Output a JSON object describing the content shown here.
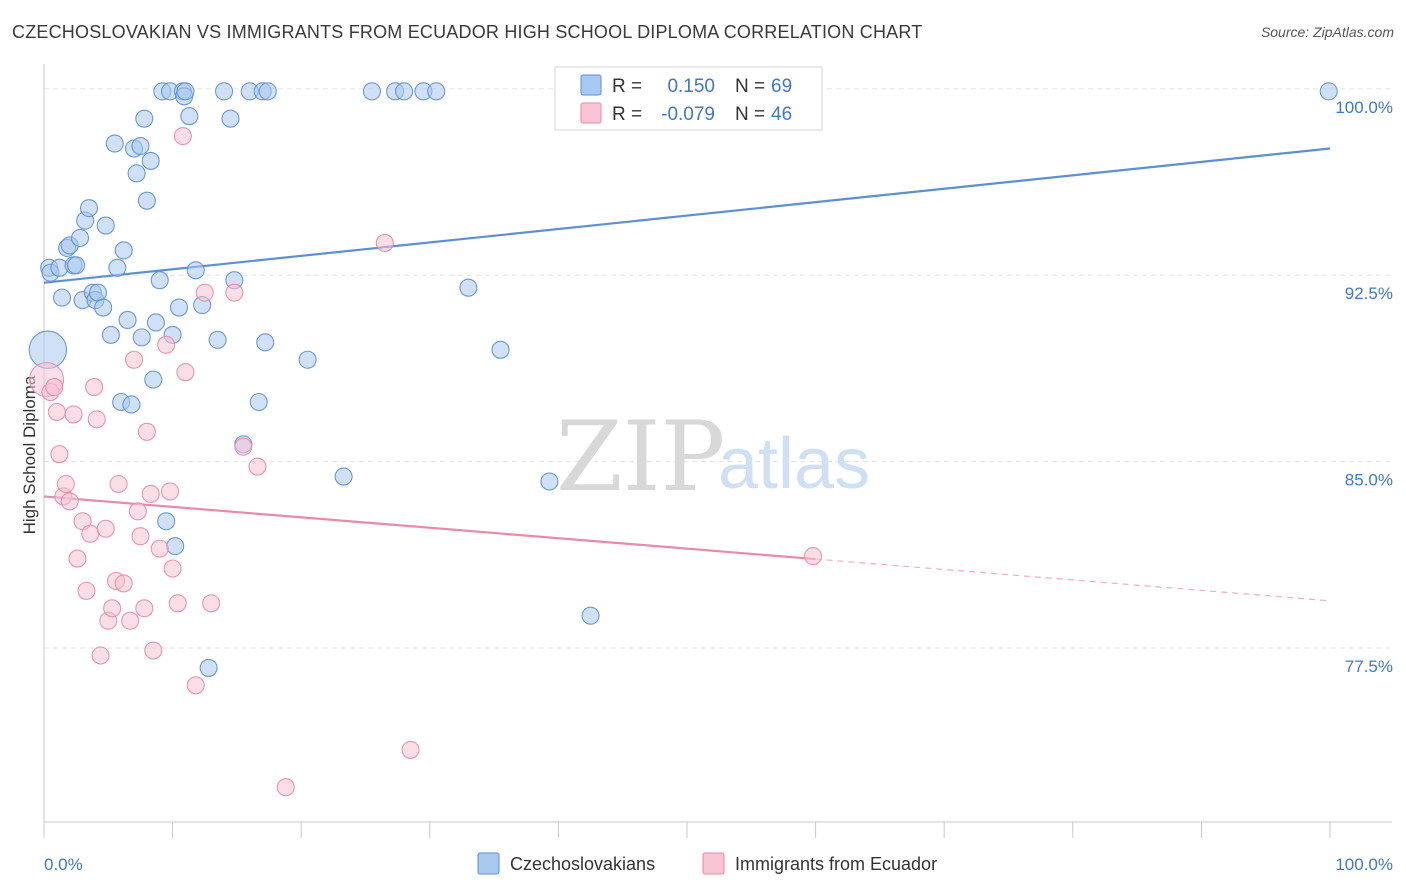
{
  "header": {
    "title": "CZECHOSLOVAKIAN VS IMMIGRANTS FROM ECUADOR HIGH SCHOOL DIPLOMA CORRELATION CHART",
    "source": "Source: ZipAtlas.com"
  },
  "watermark": {
    "zip": "ZIP",
    "atlas": "atlas"
  },
  "legend_box": {
    "rows": [
      {
        "r_label": "R =",
        "r_value": "0.150",
        "n_label": "N =",
        "n_value": "69",
        "color": "#a9c8f0",
        "stroke": "#5b8fd6"
      },
      {
        "r_label": "R =",
        "r_value": "-0.079",
        "n_label": "N =",
        "n_value": "46",
        "color": "#f8c3d2",
        "stroke": "#e88aa8"
      }
    ]
  },
  "bottom_legend": {
    "items": [
      {
        "label": "Czechoslovakians",
        "color": "#a9c8f0",
        "stroke": "#5b8fd6"
      },
      {
        "label": "Immigrants from Ecuador",
        "color": "#f8c3d2",
        "stroke": "#e88aa8"
      }
    ]
  },
  "chart_data": {
    "type": "scatter",
    "title": "CZECHOSLOVAKIAN VS IMMIGRANTS FROM ECUADOR HIGH SCHOOL DIPLOMA CORRELATION CHART",
    "xlabel": "",
    "ylabel": "High School Diploma",
    "xlim": [
      0,
      100
    ],
    "ylim": [
      70.5,
      101.0
    ],
    "x_tick_labels": [
      "0.0%",
      "100.0%"
    ],
    "y_ticks": [
      77.5,
      85.0,
      92.5,
      100.0
    ],
    "y_tick_labels": [
      "77.5%",
      "85.0%",
      "92.5%",
      "100.0%"
    ],
    "grid": true,
    "series": [
      {
        "name": "Czechoslovakians",
        "color": "#5b8fd6",
        "fill": "#a9c8f0",
        "trend": {
          "x0": 0,
          "y0": 92.2,
          "x1": 100,
          "y1": 97.6,
          "dashed_from": null
        },
        "points": [
          [
            0.3,
            89.5,
            2.2
          ],
          [
            0.4,
            92.8,
            1
          ],
          [
            0.5,
            92.6,
            1
          ],
          [
            1.2,
            92.8,
            1
          ],
          [
            1.4,
            91.6,
            1
          ],
          [
            1.8,
            93.6,
            1
          ],
          [
            2.0,
            93.7,
            1
          ],
          [
            2.3,
            92.9,
            1
          ],
          [
            2.5,
            92.9,
            1
          ],
          [
            2.8,
            94.0,
            1
          ],
          [
            3.0,
            91.5,
            1
          ],
          [
            3.2,
            94.7,
            1
          ],
          [
            3.5,
            95.2,
            1
          ],
          [
            3.8,
            91.8,
            1
          ],
          [
            4.0,
            91.5,
            1
          ],
          [
            4.2,
            91.8,
            1
          ],
          [
            4.6,
            91.2,
            1
          ],
          [
            4.8,
            94.5,
            1
          ],
          [
            5.2,
            90.1,
            1
          ],
          [
            5.5,
            97.8,
            1
          ],
          [
            5.7,
            92.8,
            1
          ],
          [
            6.0,
            87.4,
            1
          ],
          [
            6.2,
            93.5,
            1
          ],
          [
            6.5,
            90.7,
            1
          ],
          [
            6.8,
            87.3,
            1
          ],
          [
            7.0,
            97.6,
            1
          ],
          [
            7.2,
            96.6,
            1
          ],
          [
            7.5,
            97.7,
            1
          ],
          [
            7.6,
            90.0,
            1
          ],
          [
            7.8,
            98.8,
            1
          ],
          [
            8.0,
            95.5,
            1
          ],
          [
            8.3,
            97.1,
            1
          ],
          [
            8.5,
            88.3,
            1
          ],
          [
            8.7,
            90.6,
            1
          ],
          [
            9.0,
            92.3,
            1
          ],
          [
            9.2,
            99.9,
            1
          ],
          [
            9.5,
            82.6,
            1
          ],
          [
            9.8,
            99.9,
            1
          ],
          [
            10.0,
            90.1,
            1
          ],
          [
            10.2,
            81.6,
            1
          ],
          [
            10.5,
            91.2,
            1
          ],
          [
            10.8,
            99.9,
            1
          ],
          [
            10.9,
            99.7,
            1
          ],
          [
            11.0,
            99.9,
            1
          ],
          [
            11.3,
            98.9,
            1
          ],
          [
            11.8,
            92.7,
            1
          ],
          [
            12.3,
            91.3,
            1
          ],
          [
            12.8,
            76.7,
            1
          ],
          [
            13.5,
            89.9,
            1
          ],
          [
            14.0,
            99.9,
            1
          ],
          [
            14.5,
            98.8,
            1
          ],
          [
            14.8,
            92.3,
            1
          ],
          [
            15.5,
            85.7,
            1
          ],
          [
            16.0,
            99.9,
            1
          ],
          [
            16.7,
            87.4,
            1
          ],
          [
            17.0,
            99.9,
            1
          ],
          [
            17.2,
            89.8,
            1
          ],
          [
            17.4,
            99.9,
            1
          ],
          [
            20.5,
            89.1,
            1
          ],
          [
            23.3,
            84.4,
            1
          ],
          [
            25.5,
            99.9,
            1
          ],
          [
            27.3,
            99.9,
            1
          ],
          [
            28.0,
            99.9,
            1
          ],
          [
            29.5,
            99.9,
            1
          ],
          [
            30.5,
            99.9,
            1
          ],
          [
            33.0,
            92.0,
            1
          ],
          [
            35.5,
            89.5,
            1
          ],
          [
            39.3,
            84.2,
            1
          ],
          [
            42.5,
            78.8,
            1
          ],
          [
            99.9,
            99.9,
            1
          ]
        ]
      },
      {
        "name": "Immigrants from Ecuador",
        "color": "#e88aa8",
        "fill": "#f8c3d2",
        "trend": {
          "x0": 0,
          "y0": 83.6,
          "x1": 100,
          "y1": 79.4,
          "dashed_from": 60
        },
        "points": [
          [
            0.2,
            88.3,
            2
          ],
          [
            0.5,
            87.8,
            1
          ],
          [
            0.8,
            88.0,
            1
          ],
          [
            1.0,
            87.0,
            1
          ],
          [
            1.2,
            85.3,
            1
          ],
          [
            1.5,
            83.6,
            1
          ],
          [
            1.7,
            84.1,
            1
          ],
          [
            2.0,
            83.4,
            1
          ],
          [
            2.3,
            86.9,
            1
          ],
          [
            2.6,
            81.1,
            1
          ],
          [
            3.0,
            82.6,
            1
          ],
          [
            3.3,
            79.8,
            1
          ],
          [
            3.6,
            82.1,
            1
          ],
          [
            3.9,
            88.0,
            1
          ],
          [
            4.1,
            86.7,
            1
          ],
          [
            4.4,
            77.2,
            1
          ],
          [
            4.8,
            82.3,
            1
          ],
          [
            5.0,
            78.6,
            1
          ],
          [
            5.3,
            79.1,
            1
          ],
          [
            5.6,
            80.2,
            1
          ],
          [
            5.8,
            84.1,
            1
          ],
          [
            6.2,
            80.1,
            1
          ],
          [
            6.7,
            78.6,
            1
          ],
          [
            7.0,
            89.1,
            1
          ],
          [
            7.3,
            83.0,
            1
          ],
          [
            7.5,
            82.0,
            1
          ],
          [
            7.8,
            79.1,
            1
          ],
          [
            8.0,
            86.2,
            1
          ],
          [
            8.3,
            83.7,
            1
          ],
          [
            8.5,
            77.4,
            1
          ],
          [
            9.0,
            81.5,
            1
          ],
          [
            9.5,
            89.7,
            1
          ],
          [
            9.8,
            83.8,
            1
          ],
          [
            10.0,
            80.7,
            1
          ],
          [
            10.4,
            79.3,
            1
          ],
          [
            10.8,
            98.1,
            1
          ],
          [
            11.0,
            88.6,
            1
          ],
          [
            11.8,
            76.0,
            1
          ],
          [
            12.5,
            91.8,
            1
          ],
          [
            13.0,
            79.3,
            1
          ],
          [
            14.8,
            91.8,
            1
          ],
          [
            15.5,
            85.6,
            1
          ],
          [
            16.6,
            84.8,
            1
          ],
          [
            18.8,
            71.9,
            1
          ],
          [
            26.5,
            93.8,
            1
          ],
          [
            28.5,
            73.4,
            1
          ],
          [
            59.8,
            81.2,
            1
          ]
        ]
      }
    ]
  }
}
